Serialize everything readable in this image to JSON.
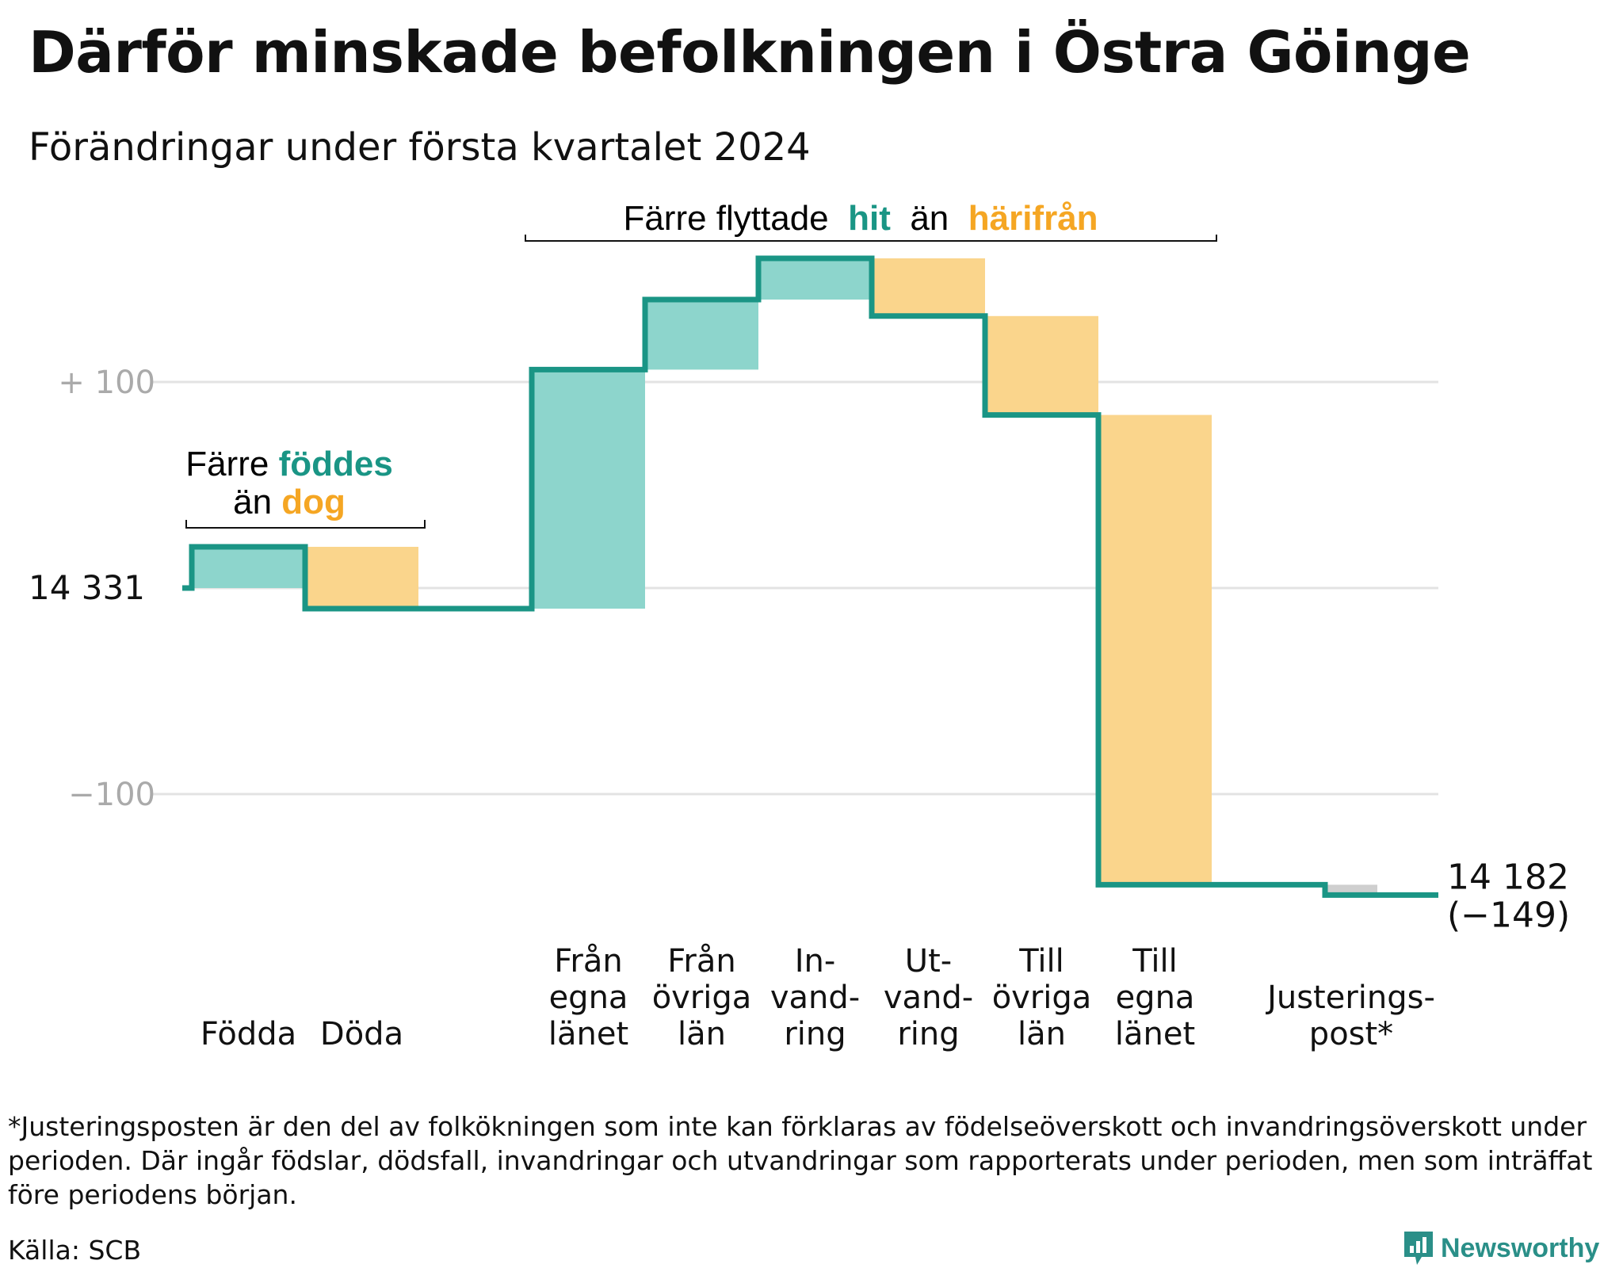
{
  "title": "Därför minskade befolkningen i Östra Göinge",
  "subtitle": "Förändringar under första kvartalet 2024",
  "colors": {
    "increase": "#8dd5cc",
    "decrease": "#fad58c",
    "adjustment": "#cfcfcf",
    "line": "#1a9585",
    "accent_teal": "#1a9585",
    "accent_orange": "#f5a623",
    "grid": "#e3e3e3",
    "axis_text": "#aaaaaa"
  },
  "chart_data": {
    "type": "waterfall",
    "start_label": "14  331",
    "start_value": 14331,
    "ytick_labels": [
      "+  100",
      "−100"
    ],
    "yticks": [
      100,
      -100
    ],
    "ylim": [
      -160,
      165
    ],
    "steps": [
      {
        "label": [
          "Födda"
        ],
        "delta": 20,
        "kind": "increase"
      },
      {
        "label": [
          "Döda"
        ],
        "delta": -30,
        "kind": "decrease"
      },
      {
        "label": [
          "Från",
          "egna",
          "länet"
        ],
        "delta": 116,
        "kind": "increase"
      },
      {
        "label": [
          "Från",
          "övriga",
          "län"
        ],
        "delta": 34,
        "kind": "increase"
      },
      {
        "label": [
          "In-",
          "vand-",
          "ring"
        ],
        "delta": 20,
        "kind": "increase"
      },
      {
        "label": [
          "Ut-",
          "vand-",
          "ring"
        ],
        "delta": -28,
        "kind": "decrease"
      },
      {
        "label": [
          "Till",
          "övriga",
          "län"
        ],
        "delta": -48,
        "kind": "decrease"
      },
      {
        "label": [
          "Till",
          "egna",
          "länet"
        ],
        "delta": -228,
        "kind": "decrease"
      },
      {
        "label": [
          "Justerings-",
          "post*"
        ],
        "delta": -5,
        "kind": "adjustment"
      }
    ],
    "end_label": "14 182",
    "end_change": "(−149)",
    "annotations": {
      "births": {
        "prefix": "Färre",
        "highlight1": "föddes",
        "middle": "än",
        "highlight2": "dog"
      },
      "moves": {
        "prefix": "Färre flyttade",
        "highlight1": "hit",
        "middle": "än",
        "highlight2": "härifrån"
      }
    }
  },
  "footnote": "*Justeringsposten är den del av folkökningen som inte kan förklaras av födelseöverskott och invandringsöverskott under perioden. Där ingår födslar, dödsfall, invandringar och utvandringar som rapporterats under perioden, men som inträffat före periodens början.",
  "source": "Källa: SCB",
  "brand": "Newsworthy"
}
